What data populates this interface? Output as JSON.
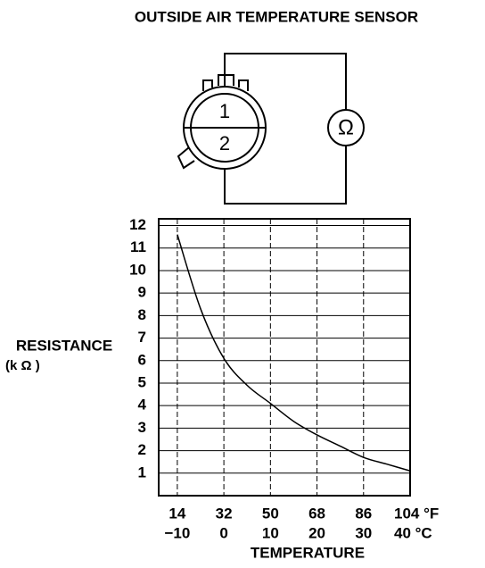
{
  "chart_data": {
    "type": "line",
    "title": "OUTSIDE AIR TEMPERATURE SENSOR",
    "diagram": {
      "pins": [
        "1",
        "2"
      ],
      "meter": "Ω"
    },
    "y_label": "RESISTANCE",
    "y_unit": "(k Ω )",
    "x_label": "TEMPERATURE",
    "x": [
      -10,
      -5,
      0,
      5,
      10,
      15,
      20,
      25,
      30,
      35,
      40
    ],
    "values": [
      11.6,
      8.3,
      6.1,
      4.9,
      4.1,
      3.3,
      2.7,
      2.2,
      1.7,
      1.4,
      1.1
    ],
    "color": "#000000",
    "xlim": [
      -14,
      40
    ],
    "xticks": [
      {
        "value": -10,
        "label": "−10"
      },
      0,
      10,
      20,
      30,
      {
        "value": 40,
        "label": "40 °C"
      }
    ],
    "x2lim": [
      6.8,
      104
    ],
    "x2ticks": [
      14,
      32,
      50,
      68,
      86,
      {
        "value": 104,
        "label": "104 °F"
      }
    ],
    "ylim": [
      0,
      12.3
    ],
    "yticks": [
      1,
      2,
      3,
      4,
      5,
      6,
      7,
      8,
      9,
      10,
      11,
      12
    ],
    "grid": true
  }
}
